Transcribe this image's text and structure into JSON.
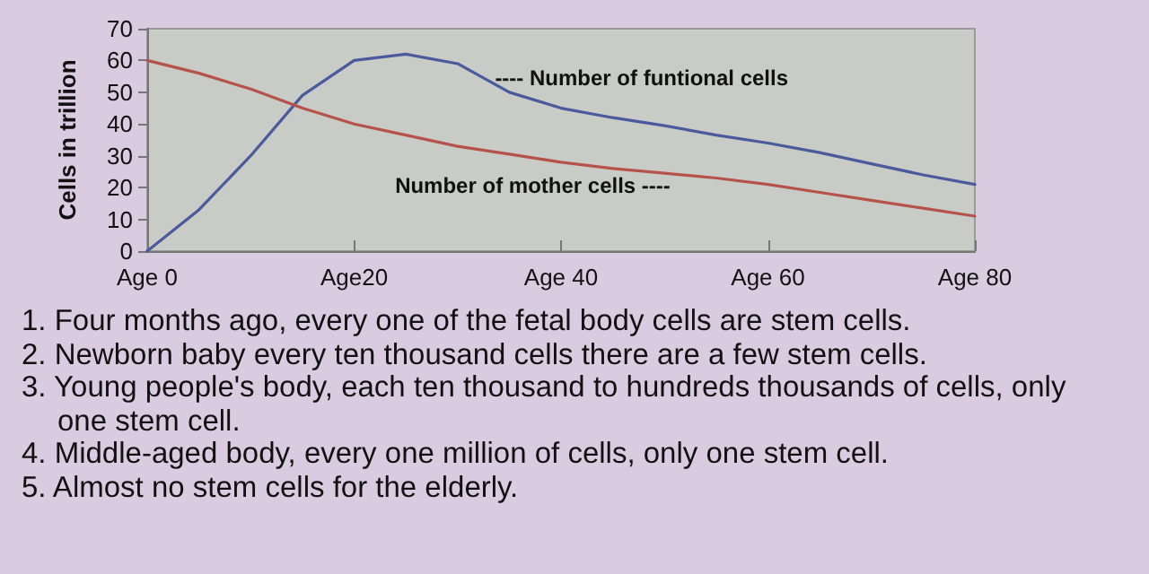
{
  "chart_data": {
    "type": "line",
    "ylabel": "Cells in trillion",
    "categories": [
      "Age 0",
      null,
      null,
      null,
      "Age20",
      null,
      null,
      null,
      "Age 40",
      null,
      null,
      null,
      "Age 60",
      null,
      null,
      null,
      "Age 80"
    ],
    "ylim": [
      0,
      70
    ],
    "yticks": [
      0,
      10,
      20,
      30,
      40,
      50,
      60,
      70
    ],
    "grid": false,
    "marker": "none",
    "series": [
      {
        "name": "---- Number of funtional cells",
        "color": "#4a5a9c",
        "values": [
          0,
          13,
          30,
          49,
          60,
          62,
          59,
          50,
          45,
          42,
          39.5,
          36.5,
          34,
          31,
          27.5,
          24,
          21
        ]
      },
      {
        "name": "Number of mother cells ----",
        "color": "#b5534a",
        "values": [
          60,
          56,
          51,
          45,
          40,
          36.5,
          33,
          30.5,
          28,
          26,
          24.5,
          23,
          21,
          18.5,
          16,
          13.5,
          11
        ]
      }
    ],
    "annotations": [
      "1. Four months ago, every one of the fetal body cells are stem cells.",
      "2. Newborn baby every ten thousand cells there are a few stem cells.",
      "3. Young people's body, each ten thousand to hundreds thousands of cells, only one stem cell.",
      "4. Middle-aged body, every one million of cells, only one stem cell.",
      "5. Almost no stem cells for the elderly."
    ]
  }
}
